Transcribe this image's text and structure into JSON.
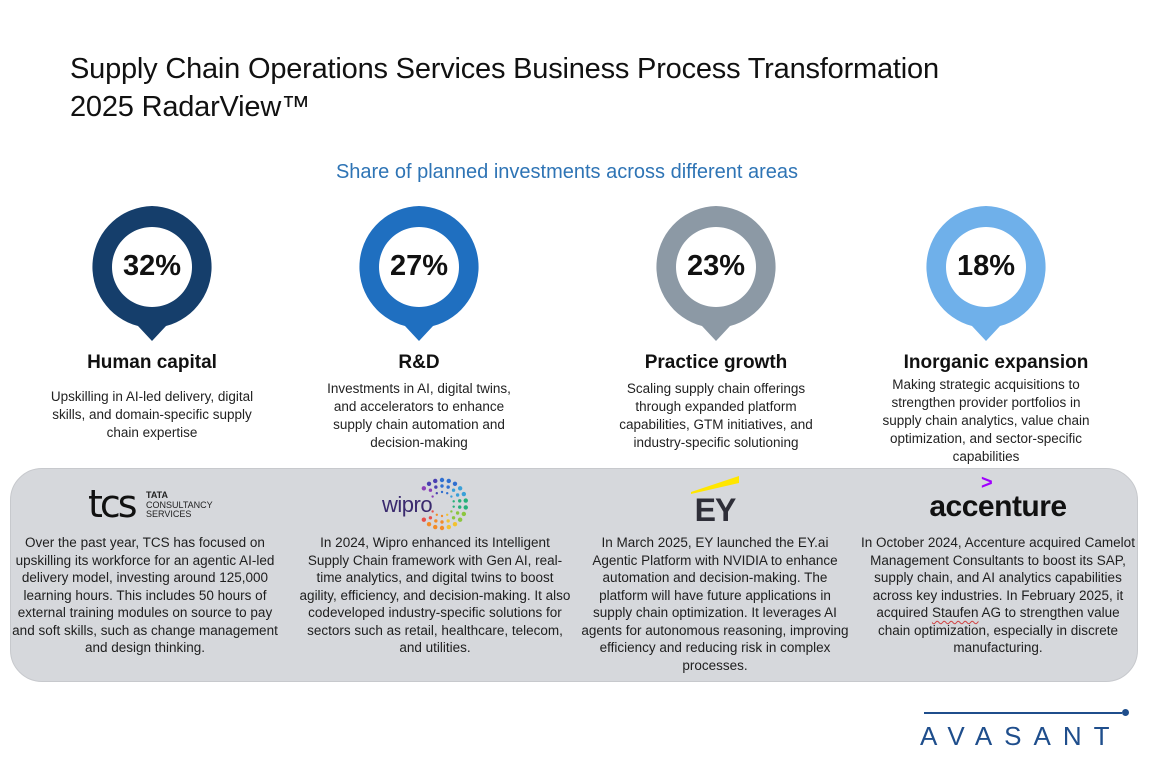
{
  "header": {
    "title_line1": "Supply Chain Operations Services Business Process Transformation",
    "title_line2": "2025 RadarView™",
    "subtitle": "Share of planned investments across different areas"
  },
  "pillars": [
    {
      "value": "32%",
      "name": "Human capital",
      "color": "#153e6b",
      "description": "Upskilling in AI-led delivery, digital skills, and domain-specific supply chain expertise"
    },
    {
      "value": "27%",
      "name": "R&D",
      "color": "#1f6fc0",
      "description": "Investments in AI, digital twins, and accelerators to enhance supply chain automation and decision-making"
    },
    {
      "value": "23%",
      "name": "Practice growth",
      "color": "#8c99a5",
      "description": "Scaling supply chain offerings through expanded platform capabilities, GTM initiatives, and industry-specific solutioning"
    },
    {
      "value": "18%",
      "name": "Inorganic expansion",
      "color": "#6fb0ea",
      "description": "Making strategic acquisitions to strengthen provider portfolios in supply chain analytics, value chain optimization, and sector-specific capabilities"
    }
  ],
  "providers": [
    {
      "logo_mark": "tcs",
      "logo_line1": "TATA",
      "logo_line2": "CONSULTANCY",
      "logo_line3": "SERVICES",
      "text": "Over the past year, TCS has focused on upskilling its workforce for an agentic AI-led delivery model, investing around 125,000 learning hours. This includes 50 hours of external training modules on source to pay and soft skills, such as change management and design thinking."
    },
    {
      "logo_mark": "wipro",
      "text": "In 2024, Wipro enhanced its Intelligent Supply Chain framework with Gen AI, real-time analytics, and digital twins to boost agility, efficiency, and decision-making. It also codeveloped industry-specific solutions for sectors such as retail, healthcare, telecom, and utilities."
    },
    {
      "logo_mark": "EY",
      "accent_color": "#ffe600",
      "text": "In March 2025, EY launched the EY.ai Agentic Platform with NVIDIA to enhance automation and decision-making. The platform will have future applications in supply chain optimization. It leverages AI agents for autonomous reasoning, improving efficiency and reducing risk in complex processes."
    },
    {
      "logo_mark": "accenture",
      "logo_accent": ">",
      "accent_color": "#a100ff",
      "text_before": "In October 2024, Accenture acquired Camelot Management Consultants to boost its SAP, supply chain, and AI analytics capabilities across key industries. In February 2025, it acquired ",
      "text_highlight": "Staufen",
      "text_after": " AG to strengthen value chain optimization, especially in discrete manufacturing."
    }
  ],
  "footer": {
    "brand": "AVASANT",
    "brand_color": "#1f4e8c"
  }
}
